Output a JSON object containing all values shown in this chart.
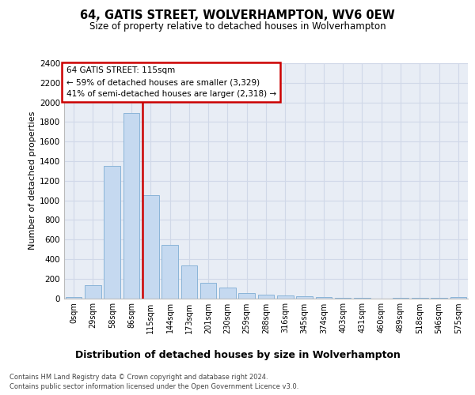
{
  "title": "64, GATIS STREET, WOLVERHAMPTON, WV6 0EW",
  "subtitle": "Size of property relative to detached houses in Wolverhampton",
  "xlabel": "Distribution of detached houses by size in Wolverhampton",
  "ylabel": "Number of detached properties",
  "categories": [
    "0sqm",
    "29sqm",
    "58sqm",
    "86sqm",
    "115sqm",
    "144sqm",
    "173sqm",
    "201sqm",
    "230sqm",
    "259sqm",
    "288sqm",
    "316sqm",
    "345sqm",
    "374sqm",
    "403sqm",
    "431sqm",
    "460sqm",
    "489sqm",
    "518sqm",
    "546sqm",
    "575sqm"
  ],
  "values": [
    15,
    130,
    1350,
    1890,
    1050,
    545,
    335,
    160,
    110,
    55,
    35,
    25,
    20,
    10,
    5,
    2,
    0,
    2,
    2,
    2,
    15
  ],
  "bar_color": "#c5d9f0",
  "bar_edge_color": "#8ab4d8",
  "vline_index": 4,
  "vline_color": "#cc0000",
  "annotation_line1": "64 GATIS STREET: 115sqm",
  "annotation_line2": "← 59% of detached houses are smaller (3,329)",
  "annotation_line3": "41% of semi-detached houses are larger (2,318) →",
  "annotation_box_edge_color": "#cc0000",
  "ylim": [
    0,
    2400
  ],
  "yticks": [
    0,
    200,
    400,
    600,
    800,
    1000,
    1200,
    1400,
    1600,
    1800,
    2000,
    2200,
    2400
  ],
  "grid_color": "#d0d8e8",
  "plot_bg_color": "#e8edf5",
  "footer_line1": "Contains HM Land Registry data © Crown copyright and database right 2024.",
  "footer_line2": "Contains public sector information licensed under the Open Government Licence v3.0."
}
